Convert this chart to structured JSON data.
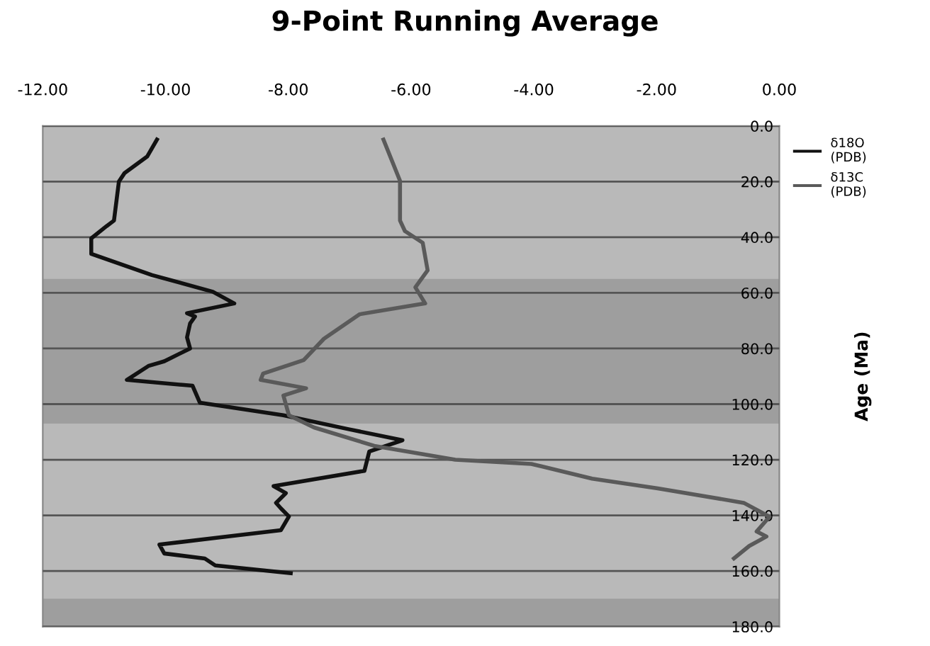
{
  "chart_data": {
    "type": "line",
    "title": "9-Point Running Average",
    "ylabel": "Age (Ma)",
    "xlim": [
      -12,
      0
    ],
    "xticks": [
      {
        "value": -12,
        "label": "-12.00"
      },
      {
        "value": -10,
        "label": "-10.00"
      },
      {
        "value": -8,
        "label": "-8.00"
      },
      {
        "value": -6,
        "label": "-6.00"
      },
      {
        "value": -4,
        "label": "-4.00"
      },
      {
        "value": -2,
        "label": "-2.00"
      },
      {
        "value": 0,
        "label": "0.00"
      }
    ],
    "ylim": [
      180,
      0
    ],
    "yticks": [
      {
        "value": 0,
        "label": "0.0"
      },
      {
        "value": 20,
        "label": "20.0"
      },
      {
        "value": 40,
        "label": "40.0"
      },
      {
        "value": 60,
        "label": "60.0"
      },
      {
        "value": 80,
        "label": "80.0"
      },
      {
        "value": 100,
        "label": "100.0"
      },
      {
        "value": 120,
        "label": "120.0"
      },
      {
        "value": 140,
        "label": "140.0"
      },
      {
        "value": 160,
        "label": "160.0"
      },
      {
        "value": 180,
        "label": "180.0"
      }
    ],
    "grid": "y",
    "legend": "top right",
    "marker": "none",
    "line_style": "solid",
    "bands": [
      {
        "axis": "y",
        "from": 55,
        "to": 107,
        "color": "#9e9e9e"
      },
      {
        "axis": "y",
        "from": 170,
        "to": 180,
        "color": "#9e9e9e"
      }
    ],
    "series": [
      {
        "name": "δ18O\n(PDB)",
        "color": "#111111",
        "x": [
          -10.14,
          -10.3,
          -10.67,
          -10.76,
          -10.84,
          -10.96,
          -11.21,
          -11.21,
          -10.22,
          -9.23,
          -8.88,
          -9.65,
          -9.52,
          -9.6,
          -9.65,
          -9.6,
          -10.02,
          -10.28,
          -10.63,
          -9.56,
          -9.44,
          -8.08,
          -7.02,
          -6.14,
          -6.68,
          -6.76,
          -8.24,
          -8.04,
          -8.2,
          -8.12,
          -7.99,
          -8.12,
          -10.1,
          -10.02,
          -9.36,
          -9.19,
          -7.96
        ],
        "values": [
          4.9,
          11,
          17,
          20,
          34,
          36,
          40.4,
          46,
          53.6,
          59.6,
          63.8,
          67.3,
          68.5,
          71,
          76,
          80,
          84.6,
          86.3,
          91.3,
          93.4,
          99.5,
          104,
          109,
          113,
          117,
          124,
          129.5,
          132,
          135.5,
          137.5,
          140.4,
          145.3,
          150.5,
          153.7,
          155.5,
          158,
          160.8
        ]
      },
      {
        "name": "δ13C\n(PDB)",
        "color": "#5a5a5a",
        "x": [
          -6.45,
          -6.18,
          -6.18,
          -6.1,
          -5.81,
          -5.73,
          -5.93,
          -5.77,
          -6.84,
          -7.42,
          -7.75,
          -8.41,
          -8.45,
          -7.71,
          -8.08,
          -7.99,
          -7.58,
          -6.6,
          -5.28,
          -4.04,
          -3.05,
          -1.98,
          -0.58,
          -0.16,
          -0.37,
          -0.21,
          -0.49,
          -0.74
        ],
        "values": [
          4.9,
          19.7,
          34,
          37.8,
          42,
          51.9,
          58,
          63.8,
          67.7,
          76.5,
          84.2,
          89,
          91.3,
          94.3,
          96.9,
          104,
          108.4,
          115,
          120,
          121.5,
          126.8,
          130.3,
          135.5,
          140.5,
          145.8,
          147.6,
          151,
          155.5
        ]
      }
    ]
  }
}
